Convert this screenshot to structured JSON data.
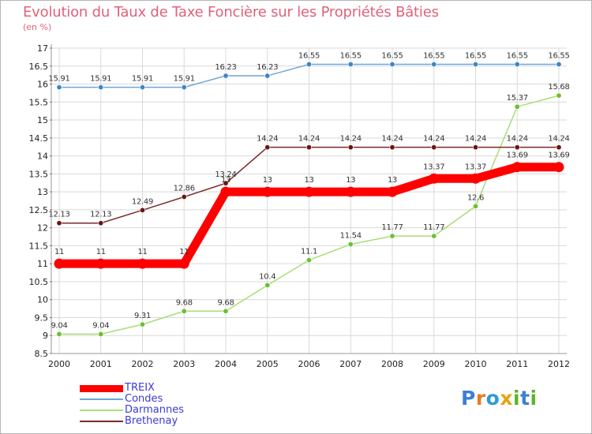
{
  "title": "Evolution du Taux de Taxe Foncière sur les Propriétés Bâties",
  "subtitle": "(en %)",
  "logo_text": "Proxiti",
  "chart_data": {
    "type": "line",
    "title": "Evolution du Taux de Taxe Foncière sur les Propriétés Bâties",
    "ylabel": "(en %)",
    "xlabel": "",
    "x": [
      "2000",
      "2001",
      "2002",
      "2003",
      "2004",
      "2005",
      "2006",
      "2007",
      "2008",
      "2009",
      "2010",
      "2011",
      "2012"
    ],
    "ylim": [
      8.5,
      17
    ],
    "yticks": [
      "8.5",
      "9",
      "9.5",
      "10",
      "10.5",
      "11",
      "11.5",
      "12",
      "12.5",
      "13",
      "13.5",
      "14",
      "14.5",
      "15",
      "15.5",
      "16",
      "16.5",
      "17"
    ],
    "grid": true,
    "legend_position": "bottom-left",
    "series": [
      {
        "name": "TREIX",
        "color": "#ff0000",
        "emphasis": true,
        "values": [
          11,
          11,
          11,
          11,
          13,
          13,
          13,
          13,
          13,
          13.37,
          13.37,
          13.69,
          13.69
        ],
        "labels": [
          "11",
          "11",
          "11",
          "11",
          "13",
          "13",
          "13",
          "13",
          "13",
          "13.37",
          "13.37",
          "13.69",
          "13.69"
        ]
      },
      {
        "name": "Condes",
        "color": "#6ea6d6",
        "marker": "#3c86c8",
        "values": [
          15.91,
          15.91,
          15.91,
          15.91,
          16.23,
          16.23,
          16.55,
          16.55,
          16.55,
          16.55,
          16.55,
          16.55,
          16.55
        ],
        "labels": [
          "15.91",
          "15.91",
          "15.91",
          "15.91",
          "16.23",
          "16.23",
          "16.55",
          "16.55",
          "16.55",
          "16.55",
          "16.55",
          "16.55",
          "16.55"
        ]
      },
      {
        "name": "Darmannes",
        "color": "#a8dd78",
        "marker": "#6cc030",
        "values": [
          9.04,
          9.04,
          9.31,
          9.68,
          9.68,
          10.4,
          11.1,
          11.54,
          11.77,
          11.77,
          12.6,
          15.37,
          15.68
        ],
        "labels": [
          "9.04",
          "9.04",
          "9.31",
          "9.68",
          "9.68",
          "10.4",
          "11.1",
          "11.54",
          "11.77",
          "11.77",
          "12.6",
          "15.37",
          "15.68"
        ]
      },
      {
        "name": "Brethenay",
        "color": "#7a2a2a",
        "marker": "#6a1515",
        "values": [
          12.13,
          12.13,
          12.49,
          12.86,
          13.24,
          14.24,
          14.24,
          14.24,
          14.24,
          14.24,
          14.24,
          14.24,
          14.24
        ],
        "labels": [
          "12.13",
          "12.13",
          "12.49",
          "12.86",
          "13.24",
          "14.24",
          "14.24",
          "14.24",
          "14.24",
          "14.24",
          "14.24",
          "14.24",
          "14.24"
        ]
      }
    ]
  }
}
